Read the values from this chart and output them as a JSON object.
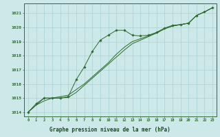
{
  "title": "Graphe pression niveau de la mer (hPa)",
  "hours": [
    0,
    1,
    2,
    3,
    4,
    5,
    6,
    7,
    8,
    9,
    10,
    11,
    12,
    13,
    14,
    15,
    16,
    17,
    18,
    19,
    20,
    21,
    22,
    23
  ],
  "line_smooth1": [
    1014.0,
    1014.5,
    1014.8,
    1015.0,
    1015.1,
    1015.2,
    1015.6,
    1016.0,
    1016.5,
    1017.0,
    1017.5,
    1018.1,
    1018.6,
    1019.0,
    1019.2,
    1019.4,
    1019.6,
    1019.9,
    1020.1,
    1020.2,
    1020.3,
    1020.85,
    1021.1,
    1021.4
  ],
  "line_smooth2": [
    1014.0,
    1014.5,
    1015.0,
    1015.0,
    1015.0,
    1015.05,
    1015.4,
    1015.9,
    1016.4,
    1016.9,
    1017.4,
    1017.9,
    1018.4,
    1018.85,
    1019.1,
    1019.35,
    1019.6,
    1019.9,
    1020.1,
    1020.2,
    1020.3,
    1020.85,
    1021.1,
    1021.4
  ],
  "line_markers": [
    1014.0,
    1014.6,
    1015.0,
    1015.0,
    1015.0,
    1015.1,
    1016.3,
    1017.2,
    1018.3,
    1019.1,
    1019.45,
    1019.8,
    1019.8,
    1019.45,
    1019.4,
    1019.45,
    1019.65,
    1019.95,
    1020.15,
    1020.2,
    1020.3,
    1020.85,
    1021.1,
    1021.4
  ],
  "ylim": [
    1013.7,
    1021.7
  ],
  "yticks": [
    1014,
    1015,
    1016,
    1017,
    1018,
    1019,
    1020,
    1021
  ],
  "line_color": "#2d6a2d",
  "bg_color": "#cce8e8",
  "grid_color": "#aad0d0",
  "title_bg_color": "#5a9a5a",
  "title_text_color": "#1a4a1a"
}
